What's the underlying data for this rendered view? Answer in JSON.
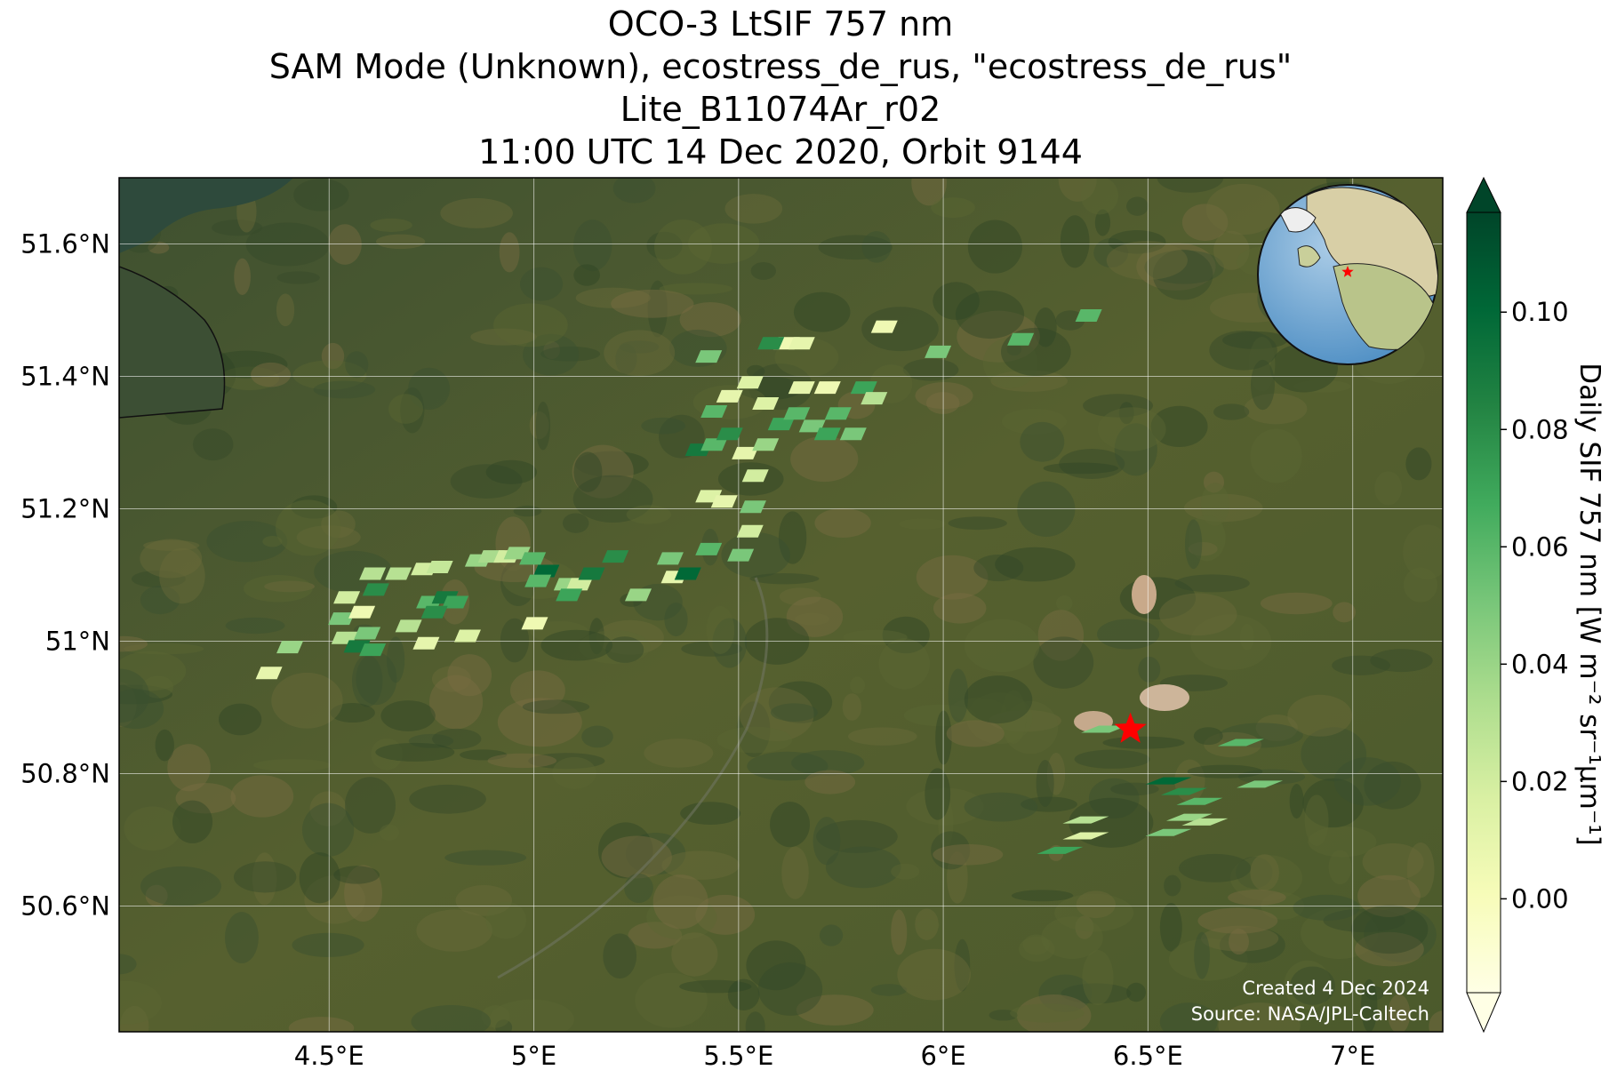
{
  "chart_data": {
    "type": "map",
    "title": [
      "OCO-3 LtSIF 757 nm",
      "SAM Mode (Unknown), ecostress_de_rus, \"ecostress_de_rus\"",
      "Lite_B11074Ar_r02",
      "11:00 UTC 14 Dec 2020, Orbit 9144"
    ],
    "xlim": [
      3.987,
      7.22
    ],
    "ylim": [
      50.41,
      51.7
    ],
    "xticks": [
      {
        "value": 4.5,
        "label": "4.5°E"
      },
      {
        "value": 5,
        "label": "5°E"
      },
      {
        "value": 5.5,
        "label": "5.5°E"
      },
      {
        "value": 6,
        "label": "6°E"
      },
      {
        "value": 6.5,
        "label": "6.5°E"
      },
      {
        "value": 7,
        "label": "7°E"
      }
    ],
    "yticks": [
      {
        "value": 50.6,
        "label": "50.6°N"
      },
      {
        "value": 50.8,
        "label": "50.8°N"
      },
      {
        "value": 51,
        "label": "51°N"
      },
      {
        "value": 51.2,
        "label": "51.2°N"
      },
      {
        "value": 51.4,
        "label": "51.4°N"
      },
      {
        "value": 51.6,
        "label": "51.6°N"
      }
    ],
    "grid": true,
    "colorbar": {
      "label": "Daily SIF 757 nm [W m⁻² sr⁻¹µm⁻¹]",
      "colormap": "YlGn",
      "clim": [
        -0.016,
        0.117
      ],
      "ticks": [
        {
          "value": 0,
          "label": "0.00"
        },
        {
          "value": 0.02,
          "label": "0.02"
        },
        {
          "value": 0.04,
          "label": "0.04"
        },
        {
          "value": 0.06,
          "label": "0.06"
        },
        {
          "value": 0.08,
          "label": "0.08"
        },
        {
          "value": 0.1,
          "label": "0.10"
        }
      ]
    },
    "soundings": {
      "lon": [
        4.353,
        4.404,
        4.53,
        4.58,
        4.543,
        4.614,
        4.606,
        4.669,
        4.538,
        4.568,
        4.606,
        4.593,
        4.694,
        4.737,
        4.745,
        4.783,
        4.808,
        4.757,
        4.732,
        4.77,
        4.838,
        4.864,
        4.896,
        4.934,
        4.959,
        4.997,
        5.03,
        5.01,
        5.002,
        5.081,
        5.111,
        5.086,
        5.141,
        5.199,
        5.255,
        5.333,
        5.343,
        5.376,
        5.427,
        5.505,
        5.528,
        5.535,
        5.427,
        5.465,
        5.402,
        5.44,
        5.478,
        5.516,
        5.541,
        5.566,
        5.604,
        5.642,
        5.68,
        5.717,
        5.743,
        5.654,
        5.717,
        5.78,
        5.806,
        5.831,
        5.44,
        5.478,
        5.528,
        5.566,
        5.617,
        5.579,
        5.654,
        5.427,
        5.856,
        5.987,
        6.189,
        6.355,
        6.393,
        6.727,
        6.773,
        6.55,
        6.588,
        6.626,
        6.601,
        6.639,
        6.55,
        6.348,
        6.348,
        6.285
      ],
      "lat": [
        50.952,
        50.991,
        51.034,
        51.044,
        51.066,
        51.078,
        51.102,
        51.102,
        51.005,
        50.992,
        50.987,
        51.012,
        51.023,
        50.997,
        51.059,
        51.066,
        51.059,
        51.044,
        51.109,
        51.112,
        51.008,
        51.122,
        51.128,
        51.128,
        51.133,
        51.125,
        51.106,
        51.091,
        51.027,
        51.086,
        51.086,
        51.07,
        51.102,
        51.128,
        51.07,
        51.125,
        51.097,
        51.102,
        51.139,
        51.13,
        51.166,
        51.203,
        51.219,
        51.211,
        51.289,
        51.297,
        51.313,
        51.284,
        51.25,
        51.297,
        51.328,
        51.344,
        51.325,
        51.313,
        51.344,
        51.383,
        51.383,
        51.313,
        51.383,
        51.367,
        51.347,
        51.37,
        51.391,
        51.359,
        51.45,
        51.45,
        51.45,
        51.43,
        51.475,
        51.437,
        51.456,
        51.492,
        50.867,
        50.847,
        50.784,
        50.789,
        50.773,
        50.758,
        50.734,
        50.727,
        50.711,
        50.73,
        50.706,
        50.684
      ],
      "values": [
        0.01,
        0.04,
        0.05,
        0.005,
        0.02,
        0.08,
        0.03,
        0.03,
        0.03,
        0.09,
        0.07,
        0.05,
        0.03,
        0.01,
        0.06,
        0.09,
        0.07,
        0.08,
        0.02,
        0.025,
        0.015,
        0.04,
        0.035,
        0.02,
        0.04,
        0.06,
        0.1,
        0.06,
        0.005,
        0.04,
        0.02,
        0.07,
        0.09,
        0.08,
        0.04,
        0.05,
        0.01,
        0.1,
        0.06,
        0.05,
        0.02,
        0.05,
        0.015,
        0.01,
        0.09,
        0.06,
        0.08,
        0.01,
        0.02,
        0.04,
        0.07,
        0.06,
        0.05,
        0.07,
        0.06,
        0.01,
        0.005,
        0.05,
        0.07,
        0.03,
        0.06,
        0.01,
        0.015,
        0.015,
        0.005,
        0.08,
        0.01,
        0.05,
        0.005,
        0.05,
        0.06,
        0.06,
        0.05,
        0.06,
        0.05,
        0.1,
        0.08,
        0.06,
        0.04,
        0.03,
        0.05,
        0.03,
        0.015,
        0.07
      ]
    },
    "target": {
      "lon": 6.457,
      "lat": 50.867
    },
    "credits": [
      "Created 4 Dec 2024",
      "Source: NASA/JPL-Caltech"
    ]
  }
}
